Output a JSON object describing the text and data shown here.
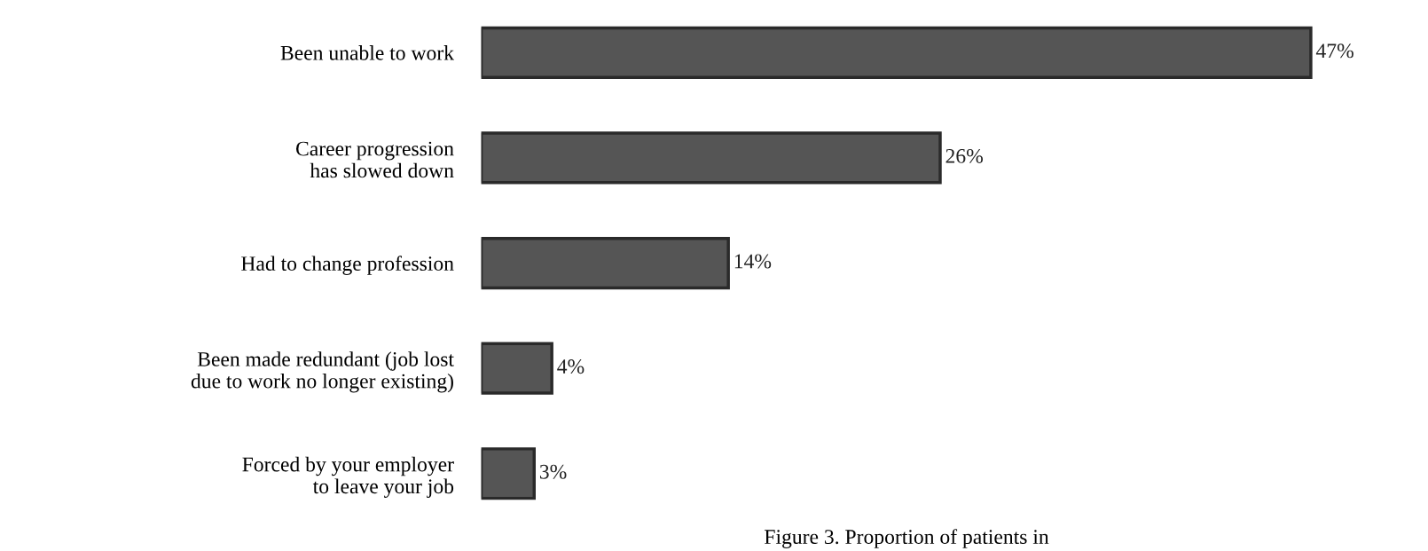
{
  "chart_data": {
    "type": "bar",
    "orientation": "horizontal",
    "categories": [
      "Been unable to work",
      "Career progression\nhas slowed down",
      "Had to change profession",
      "Been made redundant (job lost\ndue to work no longer existing)",
      "Forced by your employer\nto leave your job"
    ],
    "values": [
      47,
      26,
      14,
      4,
      3
    ],
    "value_labels": [
      "47%",
      "26%",
      "14%",
      "4%",
      "3%"
    ],
    "color": "#555555",
    "annotations": [
      "Figure 3. Proportion of patients in"
    ]
  }
}
